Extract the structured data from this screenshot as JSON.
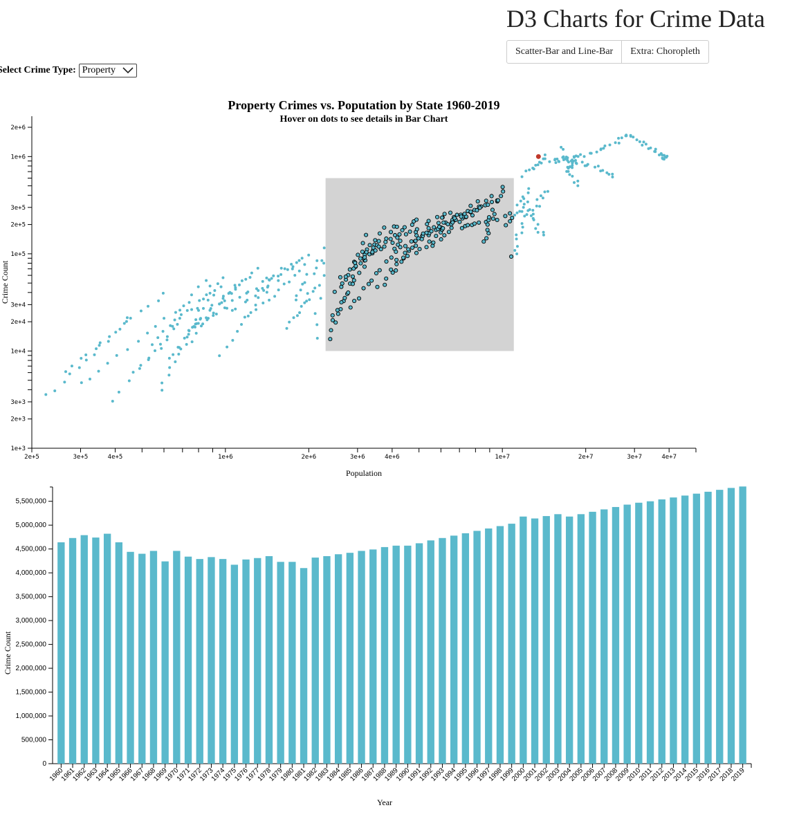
{
  "header": {
    "title": "D3 Charts for Crime Data"
  },
  "nav": {
    "tabs": [
      {
        "label": "Scatter-Bar and Line-Bar"
      },
      {
        "label": "Extra: Choropleth"
      }
    ]
  },
  "controls": {
    "crime_type_label": "Select Crime Type:",
    "crime_type_value": "Property"
  },
  "colors": {
    "points": "#5ab9cc",
    "bars": "#5ab9cc",
    "selected_point": "#c0392b",
    "brush": "#d3d3d3",
    "brushed_stroke": "#000000"
  },
  "chart_data": [
    {
      "type": "scatter",
      "title": "Property Crimes vs. Poputation by State 1960-2019",
      "subtitle": "Hover on dots to see details in Bar Chart",
      "xlabel": "Population",
      "ylabel": "Crime Count",
      "x_scale": "log",
      "y_scale": "log",
      "xlim": [
        200000,
        50000000
      ],
      "ylim": [
        1000,
        2600000
      ],
      "x_ticks": [
        "2e+5",
        "3e+5",
        "4e+5",
        "1e+6",
        "2e+6",
        "3e+6",
        "4e+6",
        "1e+7",
        "2e+7",
        "3e+7",
        "4e+7"
      ],
      "y_ticks": [
        "1e+3",
        "2e+3",
        "3e+3",
        "1e+4",
        "2e+4",
        "3e+4",
        "1e+5",
        "2e+5",
        "3e+5",
        "1e+6",
        "2e+6"
      ],
      "brush": {
        "x": [
          2300000,
          11000000
        ],
        "y": [
          10000,
          600000
        ]
      },
      "highlighted_point": {
        "x": 13500000,
        "y": 1000000
      },
      "series": [
        {
          "start": [
            230000,
            3400
          ],
          "end": [
            450000,
            22000
          ],
          "n": 12
        },
        {
          "start": [
            260000,
            6000
          ],
          "end": [
            600000,
            40000
          ],
          "n": 14
        },
        {
          "start": [
            300000,
            4500
          ],
          "end": [
            700000,
            30000
          ],
          "n": 12
        },
        {
          "start": [
            390000,
            3100
          ],
          "end": [
            900000,
            48000
          ],
          "n": 14
        },
        {
          "start": [
            500000,
            7000
          ],
          "end": [
            850000,
            52000
          ],
          "n": 12
        },
        {
          "start": [
            550000,
            12000
          ],
          "end": [
            950000,
            48000
          ],
          "n": 12
        },
        {
          "start": [
            580000,
            4000
          ],
          "end": [
            800000,
            26000
          ],
          "n": 12
        },
        {
          "start": [
            620000,
            8000
          ],
          "end": [
            1000000,
            55000
          ],
          "n": 12
        },
        {
          "start": [
            680000,
            10000
          ],
          "end": [
            1100000,
            45000
          ],
          "n": 12
        },
        {
          "start": [
            720000,
            15000
          ],
          "end": [
            1200000,
            60000
          ],
          "n": 12
        },
        {
          "start": [
            780000,
            18000
          ],
          "end": [
            1300000,
            70000
          ],
          "n": 12
        },
        {
          "start": [
            850000,
            20000
          ],
          "end": [
            1400000,
            55000
          ],
          "n": 12
        },
        {
          "start": [
            950000,
            9000
          ],
          "end": [
            1600000,
            75000
          ],
          "n": 12
        },
        {
          "start": [
            1050000,
            25000
          ],
          "end": [
            1800000,
            85000
          ],
          "n": 12
        },
        {
          "start": [
            1200000,
            22000
          ],
          "end": [
            1900000,
            75000
          ],
          "n": 12
        },
        {
          "start": [
            1300000,
            40000
          ],
          "end": [
            2000000,
            100000
          ],
          "n": 12
        },
        {
          "start": [
            1700000,
            18000
          ],
          "end": [
            2100000,
            45000
          ],
          "n": 12
        },
        {
          "start": [
            1800000,
            35000
          ],
          "end": [
            2200000,
            90000
          ],
          "n": 10
        },
        {
          "start": [
            2100000,
            14000
          ],
          "end": [
            2300000,
            110000
          ],
          "n": 8
        },
        {
          "start": [
            2350000,
            13000
          ],
          "end": [
            3200000,
            150000
          ],
          "n": 14
        },
        {
          "start": [
            2400000,
            20000
          ],
          "end": [
            3500000,
            130000
          ],
          "n": 14
        },
        {
          "start": [
            2500000,
            40000
          ],
          "end": [
            3700000,
            180000
          ],
          "n": 14
        },
        {
          "start": [
            2600000,
            55000
          ],
          "end": [
            4200000,
            200000
          ],
          "n": 14
        },
        {
          "start": [
            2800000,
            28000
          ],
          "end": [
            4500000,
            160000
          ],
          "n": 14
        },
        {
          "start": [
            3000000,
            80000
          ],
          "end": [
            5000000,
            230000
          ],
          "n": 14
        },
        {
          "start": [
            3300000,
            100000
          ],
          "end": [
            6000000,
            250000
          ],
          "n": 14
        },
        {
          "start": [
            3600000,
            45000
          ],
          "end": [
            5500000,
            190000
          ],
          "n": 14
        },
        {
          "start": [
            3900000,
            70000
          ],
          "end": [
            6500000,
            280000
          ],
          "n": 14
        },
        {
          "start": [
            4200000,
            110000
          ],
          "end": [
            7000000,
            240000
          ],
          "n": 14
        },
        {
          "start": [
            4600000,
            90000
          ],
          "end": [
            8000000,
            330000
          ],
          "n": 14
        },
        {
          "start": [
            5000000,
            150000
          ],
          "end": [
            8500000,
            290000
          ],
          "n": 14
        },
        {
          "start": [
            5500000,
            120000
          ],
          "end": [
            9200000,
            400000
          ],
          "n": 14
        },
        {
          "start": [
            6000000,
            200000
          ],
          "end": [
            9800000,
            360000
          ],
          "n": 14
        },
        {
          "start": [
            7000000,
            180000
          ],
          "end": [
            10500000,
            250000
          ],
          "n": 12
        },
        {
          "start": [
            8500000,
            130000
          ],
          "end": [
            10000000,
            480000
          ],
          "n": 12
        },
        {
          "start": [
            10500000,
            200000
          ],
          "end": [
            12500000,
            450000
          ],
          "n": 12
        },
        {
          "start": [
            11000000,
            90000
          ],
          "end": [
            12000000,
            300000
          ],
          "n": 12
        },
        {
          "start": [
            12000000,
            350000
          ],
          "end": [
            14000000,
            150000
          ],
          "n": 12
        },
        {
          "start": [
            12500000,
            250000
          ],
          "end": [
            14500000,
            450000
          ],
          "n": 10
        },
        {
          "start": [
            12000000,
            650000
          ],
          "end": [
            14500000,
            1000000
          ],
          "n": 12
        },
        {
          "start": [
            15000000,
            900000
          ],
          "end": [
            18000000,
            950000
          ],
          "n": 14
        },
        {
          "start": [
            16500000,
            1200000
          ],
          "end": [
            18500000,
            500000
          ],
          "n": 14
        },
        {
          "start": [
            17000000,
            700000
          ],
          "end": [
            19000000,
            1100000
          ],
          "n": 12
        },
        {
          "start": [
            18500000,
            900000
          ],
          "end": [
            25000000,
            650000
          ],
          "n": 14
        },
        {
          "start": [
            20000000,
            1000000
          ],
          "end": [
            28000000,
            1600000
          ],
          "n": 14
        },
        {
          "start": [
            28000000,
            1700000
          ],
          "end": [
            37000000,
            1100000
          ],
          "n": 16
        },
        {
          "start": [
            37000000,
            1000000
          ],
          "end": [
            39500000,
            950000
          ],
          "n": 10
        }
      ]
    },
    {
      "type": "bar",
      "xlabel": "Year",
      "ylabel": "Crime Count",
      "ylim": [
        0,
        5800000
      ],
      "y_ticks": [
        "0",
        "500,000",
        "1,000,000",
        "1,500,000",
        "2,000,000",
        "2,500,000",
        "3,000,000",
        "3,500,000",
        "4,000,000",
        "4,500,000",
        "5,000,000",
        "5,500,000"
      ],
      "categories": [
        "1960",
        "1961",
        "1962",
        "1963",
        "1964",
        "1965",
        "1966",
        "1967",
        "1968",
        "1969",
        "1970",
        "1971",
        "1972",
        "1973",
        "1974",
        "1975",
        "1976",
        "1977",
        "1978",
        "1979",
        "1980",
        "1981",
        "1982",
        "1983",
        "1984",
        "1985",
        "1986",
        "1987",
        "1988",
        "1989",
        "1990",
        "1991",
        "1992",
        "1993",
        "1994",
        "1995",
        "1996",
        "1997",
        "1998",
        "1999",
        "2000",
        "2001",
        "2002",
        "2003",
        "2004",
        "2005",
        "2006",
        "2007",
        "2008",
        "2009",
        "2010",
        "2011",
        "2012",
        "2013",
        "2014",
        "2015",
        "2016",
        "2017",
        "2018",
        "2019"
      ],
      "values": [
        4640000,
        4730000,
        4790000,
        4740000,
        4820000,
        4640000,
        4440000,
        4400000,
        4460000,
        4240000,
        4460000,
        4340000,
        4290000,
        4330000,
        4290000,
        4170000,
        4280000,
        4310000,
        4350000,
        4230000,
        4230000,
        4100000,
        4320000,
        4350000,
        4390000,
        4420000,
        4460000,
        4490000,
        4540000,
        4570000,
        4570000,
        4620000,
        4680000,
        4730000,
        4780000,
        4830000,
        4880000,
        4930000,
        4980000,
        5030000,
        5180000,
        5140000,
        5190000,
        5230000,
        5180000,
        5230000,
        5280000,
        5330000,
        5380000,
        5430000,
        5470000,
        5500000,
        5540000,
        5580000,
        5620000,
        5660000,
        5700000,
        5740000,
        5780000,
        5810000
      ]
    }
  ]
}
